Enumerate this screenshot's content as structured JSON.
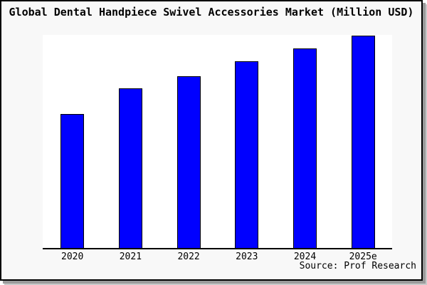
{
  "title": "Global Dental Handpiece Swivel Accessories Market (Million USD)",
  "source": "Source: Prof Research",
  "colors": {
    "bar_fill": "#0000ff",
    "bar_border": "#000000",
    "card_background": "#f8f8f8",
    "plot_background": "#ffffff",
    "axis_line": "#000000",
    "text": "#000000",
    "frame_border": "#000000",
    "drop_shadow": "#9a9a9a"
  },
  "chart_data": {
    "type": "bar",
    "title": "Global Dental Handpiece Swivel Accessories Market (Million USD)",
    "categories": [
      "2020",
      "2021",
      "2022",
      "2023",
      "2024",
      "2025e"
    ],
    "values": [
      0.63,
      0.75,
      0.81,
      0.88,
      0.94,
      1.0
    ],
    "values_unit": "relative bar height (fraction of tallest bar, 2025e); no numeric y-axis labels are shown",
    "xlabel": "",
    "ylabel": "",
    "y_axis_shown": false,
    "gridlines": false,
    "legend": false,
    "bar_color": "#0000ff",
    "bar_border_color": "#000000",
    "source": "Source: Prof Research"
  }
}
